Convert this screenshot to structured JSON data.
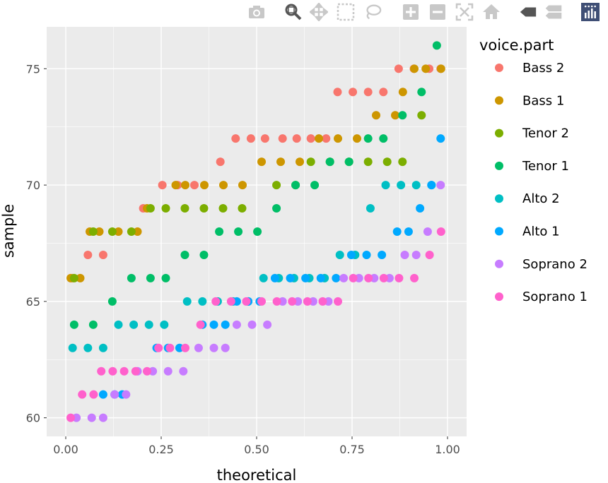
{
  "modebar": {
    "buttons": [
      "camera-icon",
      "zoom-icon",
      "pan-icon",
      "box-select-icon",
      "lasso-select-icon",
      "zoom-in-icon",
      "zoom-out-icon",
      "autoscale-icon",
      "reset-axes-icon",
      "hover-closest-icon",
      "hover-compare-icon",
      "plotly-logo-icon"
    ]
  },
  "colors": {
    "panel_bg": "#EBEBEB",
    "grid": "#FFFFFF",
    "text": "#4D4D4D",
    "title_text": "#000000"
  },
  "chart_data": {
    "type": "scatter",
    "title": "",
    "xlabel": "theoretical",
    "ylabel": "sample",
    "xlim": [
      -0.05,
      1.05
    ],
    "ylim": [
      59.2,
      76.8
    ],
    "x_ticks": [
      0.0,
      0.25,
      0.5,
      0.75,
      1.0
    ],
    "x_tick_labels": [
      "0.00",
      "0.25",
      "0.50",
      "0.75",
      "1.00"
    ],
    "y_ticks": [
      60,
      65,
      70,
      75
    ],
    "y_tick_labels": [
      "60",
      "65",
      "70",
      "75"
    ],
    "grid": true,
    "legend_title": "voice.part",
    "legend_position": "right",
    "series": [
      {
        "name": "Bass 2",
        "color": "#F8766D",
        "points": [
          [
            0.018,
            66
          ],
          [
            0.058,
            67
          ],
          [
            0.098,
            67
          ],
          [
            0.203,
            69
          ],
          [
            0.253,
            70
          ],
          [
            0.293,
            70
          ],
          [
            0.337,
            70
          ],
          [
            0.405,
            71
          ],
          [
            0.445,
            72
          ],
          [
            0.485,
            72
          ],
          [
            0.522,
            72
          ],
          [
            0.568,
            72
          ],
          [
            0.605,
            72
          ],
          [
            0.642,
            72
          ],
          [
            0.682,
            72
          ],
          [
            0.712,
            74
          ],
          [
            0.752,
            74
          ],
          [
            0.792,
            74
          ],
          [
            0.832,
            74
          ],
          [
            0.872,
            75
          ],
          [
            0.912,
            75
          ],
          [
            0.952,
            75
          ],
          [
            0.982,
            75
          ]
        ]
      },
      {
        "name": "Bass 1",
        "color": "#CD9600",
        "points": [
          [
            0.013,
            66
          ],
          [
            0.038,
            66
          ],
          [
            0.063,
            68
          ],
          [
            0.088,
            68
          ],
          [
            0.138,
            68
          ],
          [
            0.188,
            68
          ],
          [
            0.213,
            69
          ],
          [
            0.288,
            70
          ],
          [
            0.313,
            70
          ],
          [
            0.363,
            70
          ],
          [
            0.413,
            70
          ],
          [
            0.463,
            70
          ],
          [
            0.513,
            71
          ],
          [
            0.563,
            71
          ],
          [
            0.613,
            71
          ],
          [
            0.663,
            72
          ],
          [
            0.713,
            72
          ],
          [
            0.763,
            72
          ],
          [
            0.813,
            73
          ],
          [
            0.863,
            73
          ],
          [
            0.883,
            74
          ],
          [
            0.913,
            75
          ],
          [
            0.943,
            75
          ],
          [
            0.983,
            75
          ]
        ]
      },
      {
        "name": "Tenor 2",
        "color": "#7CAE00",
        "points": [
          [
            0.022,
            66
          ],
          [
            0.072,
            68
          ],
          [
            0.122,
            68
          ],
          [
            0.172,
            68
          ],
          [
            0.222,
            69
          ],
          [
            0.262,
            69
          ],
          [
            0.312,
            69
          ],
          [
            0.362,
            69
          ],
          [
            0.412,
            69
          ],
          [
            0.462,
            69
          ],
          [
            0.552,
            70
          ],
          [
            0.602,
            70
          ],
          [
            0.642,
            71
          ],
          [
            0.692,
            71
          ],
          [
            0.742,
            71
          ],
          [
            0.792,
            71
          ],
          [
            0.842,
            71
          ],
          [
            0.882,
            71
          ],
          [
            0.932,
            73
          ]
        ]
      },
      {
        "name": "Tenor 1",
        "color": "#00BE67",
        "points": [
          [
            0.022,
            64
          ],
          [
            0.072,
            64
          ],
          [
            0.122,
            65
          ],
          [
            0.172,
            66
          ],
          [
            0.222,
            66
          ],
          [
            0.262,
            66
          ],
          [
            0.312,
            67
          ],
          [
            0.362,
            67
          ],
          [
            0.402,
            68
          ],
          [
            0.452,
            68
          ],
          [
            0.502,
            68
          ],
          [
            0.552,
            69
          ],
          [
            0.602,
            70
          ],
          [
            0.652,
            70
          ],
          [
            0.692,
            71
          ],
          [
            0.742,
            71
          ],
          [
            0.792,
            72
          ],
          [
            0.832,
            72
          ],
          [
            0.882,
            73
          ],
          [
            0.932,
            74
          ],
          [
            0.972,
            76
          ]
        ]
      },
      {
        "name": "Alto 2",
        "color": "#00BFC4",
        "points": [
          [
            0.018,
            63
          ],
          [
            0.058,
            63
          ],
          [
            0.098,
            63
          ],
          [
            0.138,
            64
          ],
          [
            0.178,
            64
          ],
          [
            0.218,
            64
          ],
          [
            0.258,
            64
          ],
          [
            0.318,
            65
          ],
          [
            0.358,
            65
          ],
          [
            0.398,
            65
          ],
          [
            0.438,
            65
          ],
          [
            0.478,
            65
          ],
          [
            0.518,
            66
          ],
          [
            0.558,
            66
          ],
          [
            0.598,
            66
          ],
          [
            0.638,
            66
          ],
          [
            0.678,
            66
          ],
          [
            0.718,
            67
          ],
          [
            0.758,
            67
          ],
          [
            0.798,
            69
          ],
          [
            0.838,
            70
          ],
          [
            0.878,
            70
          ],
          [
            0.918,
            70
          ],
          [
            0.958,
            70
          ]
        ]
      },
      {
        "name": "Alto 1",
        "color": "#00A9FF",
        "points": [
          [
            0.098,
            61
          ],
          [
            0.128,
            61
          ],
          [
            0.148,
            61
          ],
          [
            0.238,
            63
          ],
          [
            0.268,
            63
          ],
          [
            0.298,
            63
          ],
          [
            0.358,
            64
          ],
          [
            0.388,
            64
          ],
          [
            0.418,
            64
          ],
          [
            0.448,
            65
          ],
          [
            0.478,
            65
          ],
          [
            0.508,
            65
          ],
          [
            0.548,
            66
          ],
          [
            0.588,
            66
          ],
          [
            0.628,
            66
          ],
          [
            0.668,
            66
          ],
          [
            0.708,
            66
          ],
          [
            0.748,
            67
          ],
          [
            0.788,
            67
          ],
          [
            0.828,
            67
          ],
          [
            0.868,
            68
          ],
          [
            0.898,
            68
          ],
          [
            0.928,
            69
          ],
          [
            0.958,
            70
          ],
          [
            0.982,
            72
          ]
        ]
      },
      {
        "name": "Soprano 2",
        "color": "#C77CFF",
        "points": [
          [
            0.028,
            60
          ],
          [
            0.068,
            60
          ],
          [
            0.098,
            60
          ],
          [
            0.128,
            61
          ],
          [
            0.158,
            61
          ],
          [
            0.188,
            62
          ],
          [
            0.228,
            62
          ],
          [
            0.268,
            62
          ],
          [
            0.308,
            62
          ],
          [
            0.348,
            63
          ],
          [
            0.388,
            63
          ],
          [
            0.418,
            63
          ],
          [
            0.448,
            64
          ],
          [
            0.488,
            64
          ],
          [
            0.528,
            64
          ],
          [
            0.568,
            65
          ],
          [
            0.608,
            65
          ],
          [
            0.648,
            65
          ],
          [
            0.688,
            65
          ],
          [
            0.728,
            66
          ],
          [
            0.768,
            66
          ],
          [
            0.808,
            66
          ],
          [
            0.848,
            66
          ],
          [
            0.888,
            67
          ],
          [
            0.918,
            67
          ],
          [
            0.948,
            68
          ],
          [
            0.982,
            70
          ]
        ]
      },
      {
        "name": "Soprano 1",
        "color": "#FF61CC",
        "points": [
          [
            0.013,
            60
          ],
          [
            0.043,
            61
          ],
          [
            0.073,
            61
          ],
          [
            0.093,
            62
          ],
          [
            0.123,
            62
          ],
          [
            0.153,
            62
          ],
          [
            0.183,
            62
          ],
          [
            0.213,
            62
          ],
          [
            0.243,
            63
          ],
          [
            0.273,
            63
          ],
          [
            0.313,
            63
          ],
          [
            0.353,
            64
          ],
          [
            0.393,
            65
          ],
          [
            0.433,
            65
          ],
          [
            0.473,
            65
          ],
          [
            0.513,
            65
          ],
          [
            0.553,
            65
          ],
          [
            0.593,
            65
          ],
          [
            0.633,
            65
          ],
          [
            0.673,
            65
          ],
          [
            0.713,
            65
          ],
          [
            0.753,
            66
          ],
          [
            0.793,
            66
          ],
          [
            0.833,
            66
          ],
          [
            0.873,
            66
          ],
          [
            0.913,
            66
          ],
          [
            0.953,
            67
          ],
          [
            0.983,
            68
          ]
        ]
      }
    ]
  }
}
